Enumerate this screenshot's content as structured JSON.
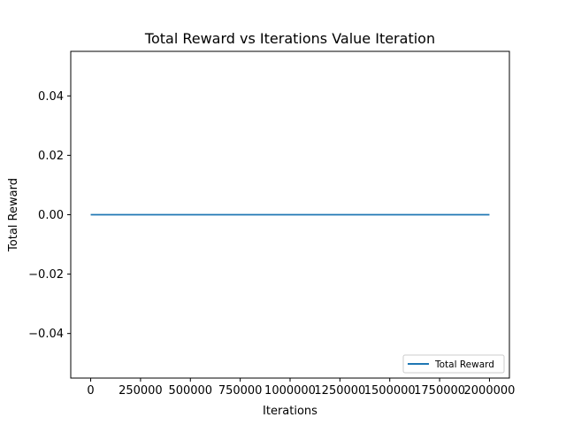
{
  "chart_data": {
    "type": "line",
    "title": "Total Reward vs Iterations Value Iteration",
    "xlabel": "Iterations",
    "ylabel": "Total Reward",
    "xlim": [
      -100000,
      2100000
    ],
    "ylim": [
      -0.055,
      0.055
    ],
    "xticks": [
      0,
      250000,
      500000,
      750000,
      1000000,
      1250000,
      1500000,
      1750000,
      2000000
    ],
    "xtick_labels": [
      "0",
      "250000",
      "500000",
      "750000",
      "1000000",
      "1250000",
      "1500000",
      "1750000",
      "2000000"
    ],
    "yticks": [
      -0.04,
      -0.02,
      0.0,
      0.02,
      0.04
    ],
    "ytick_labels": [
      "−0.04",
      "−0.02",
      "0.00",
      "0.02",
      "0.04"
    ],
    "grid": false,
    "legend_position": "lower-right",
    "series": [
      {
        "name": "Total Reward",
        "color": "#1f77b4",
        "x": [
          0,
          2000000
        ],
        "y": [
          0,
          0
        ]
      }
    ]
  }
}
